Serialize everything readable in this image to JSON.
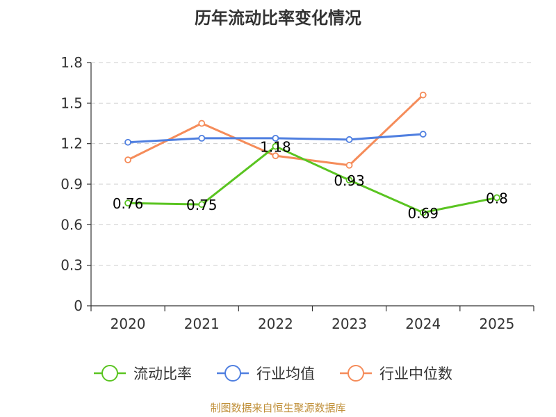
{
  "chart_data": {
    "type": "line",
    "title": "历年流动比率变化情况",
    "categories": [
      "2020",
      "2021",
      "2022",
      "2023",
      "2024",
      "2025"
    ],
    "y_ticks": [
      "0",
      "0.3",
      "0.6",
      "0.9",
      "1.2",
      "1.5",
      "1.8"
    ],
    "ylim": [
      0,
      1.8
    ],
    "grid": true,
    "legend_position": "bottom",
    "series": [
      {
        "name": "流动比率",
        "color": "#5ac421",
        "values": [
          0.76,
          0.75,
          1.18,
          0.93,
          0.69,
          0.8
        ],
        "labels": [
          "0.76",
          "0.75",
          "1.18",
          "0.93",
          "0.69",
          "0.8"
        ]
      },
      {
        "name": "行业均值",
        "color": "#4f7fe0",
        "values": [
          1.21,
          1.24,
          1.24,
          1.23,
          1.27,
          null
        ]
      },
      {
        "name": "行业中位数",
        "color": "#f58c5a",
        "values": [
          1.08,
          1.35,
          1.11,
          1.04,
          1.56,
          null
        ]
      }
    ],
    "source": "制图数据来自恒生聚源数据库"
  }
}
